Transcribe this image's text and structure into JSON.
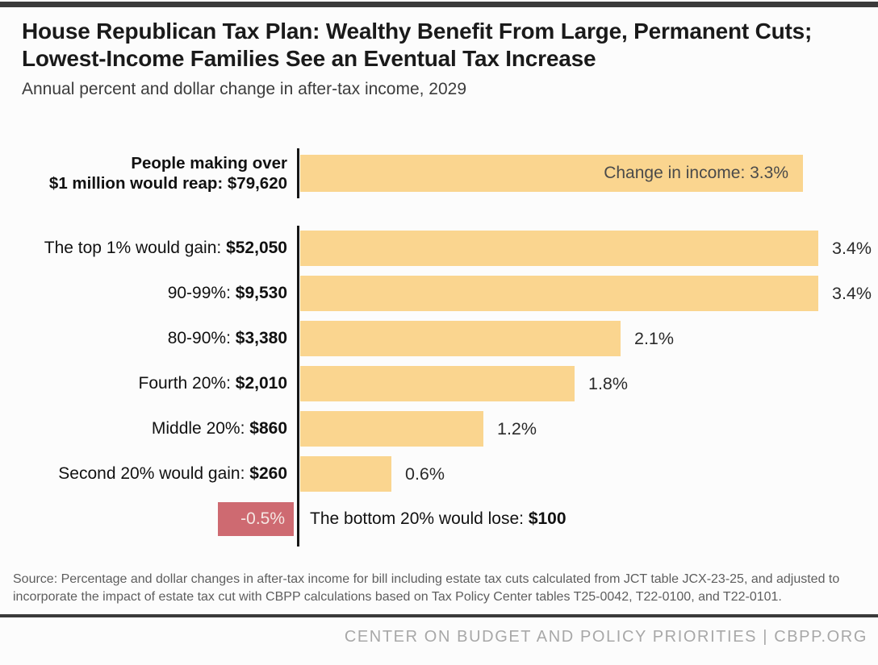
{
  "page": {
    "title": "House Republican Tax Plan: Wealthy Benefit From Large, Permanent Cuts; Lowest-Income Families See an Eventual Tax Increase",
    "subtitle": "Annual percent and dollar change in after-tax income, 2029",
    "source": "Source: Percentage and dollar changes in after-tax income for bill including estate tax cuts calculated from JCT table JCX-23-25, and adjusted to incorporate the impact of estate tax cut with CBPP calculations based on Tax Policy Center tables T25-0042, T22-0100, and T22-0101.",
    "footer": "CENTER ON BUDGET AND POLICY PRIORITIES | CBPP.ORG"
  },
  "colors": {
    "bar_positive": "#FAD58F",
    "bar_negative": "#CE6A71",
    "bar_inner_text": "#4A4A4A",
    "axis": "#161616",
    "rule": "#3A3A3A",
    "footer_text": "#A8A8A8"
  },
  "chart_data": {
    "type": "bar",
    "orientation": "horizontal",
    "title": "House Republican Tax Plan: Wealthy Benefit From Large, Permanent Cuts; Lowest-Income Families See an Eventual Tax Increase",
    "subtitle": "Annual percent and dollar change in after-tax income, 2029",
    "unit": "percent change in after-tax income",
    "xlim": [
      -0.5,
      3.4
    ],
    "grid": false,
    "legend": false,
    "rows": [
      {
        "label_line1": "People making over",
        "label_line2": "$1 million would reap: $79,620",
        "dollar_change": "$79,620",
        "value": 3.3,
        "bar_label": "Change in income: 3.3%",
        "label_position": "inside"
      },
      {
        "label_prefix": "The top 1% would gain: ",
        "label_amount": "$52,050",
        "value": 3.4,
        "pct_label": "3.4%",
        "label_position": "outside"
      },
      {
        "label_prefix": "90-99%: ",
        "label_amount": "$9,530",
        "value": 3.4,
        "pct_label": "3.4%",
        "label_position": "outside"
      },
      {
        "label_prefix": "80-90%: ",
        "label_amount": "$3,380",
        "value": 2.1,
        "pct_label": "2.1%",
        "label_position": "outside"
      },
      {
        "label_prefix": "Fourth 20%: ",
        "label_amount": "$2,010",
        "value": 1.8,
        "pct_label": "1.8%",
        "label_position": "outside"
      },
      {
        "label_prefix": "Middle 20%: ",
        "label_amount": "$860",
        "value": 1.2,
        "pct_label": "1.2%",
        "label_position": "outside"
      },
      {
        "label_prefix": "Second 20% would gain: ",
        "label_amount": "$260",
        "value": 0.6,
        "pct_label": "0.6%",
        "label_position": "outside"
      },
      {
        "label_prefix": "The bottom 20% would lose: ",
        "label_amount": "$100",
        "value": -0.5,
        "bar_label": "-0.5%",
        "label_position": "inside"
      }
    ]
  }
}
